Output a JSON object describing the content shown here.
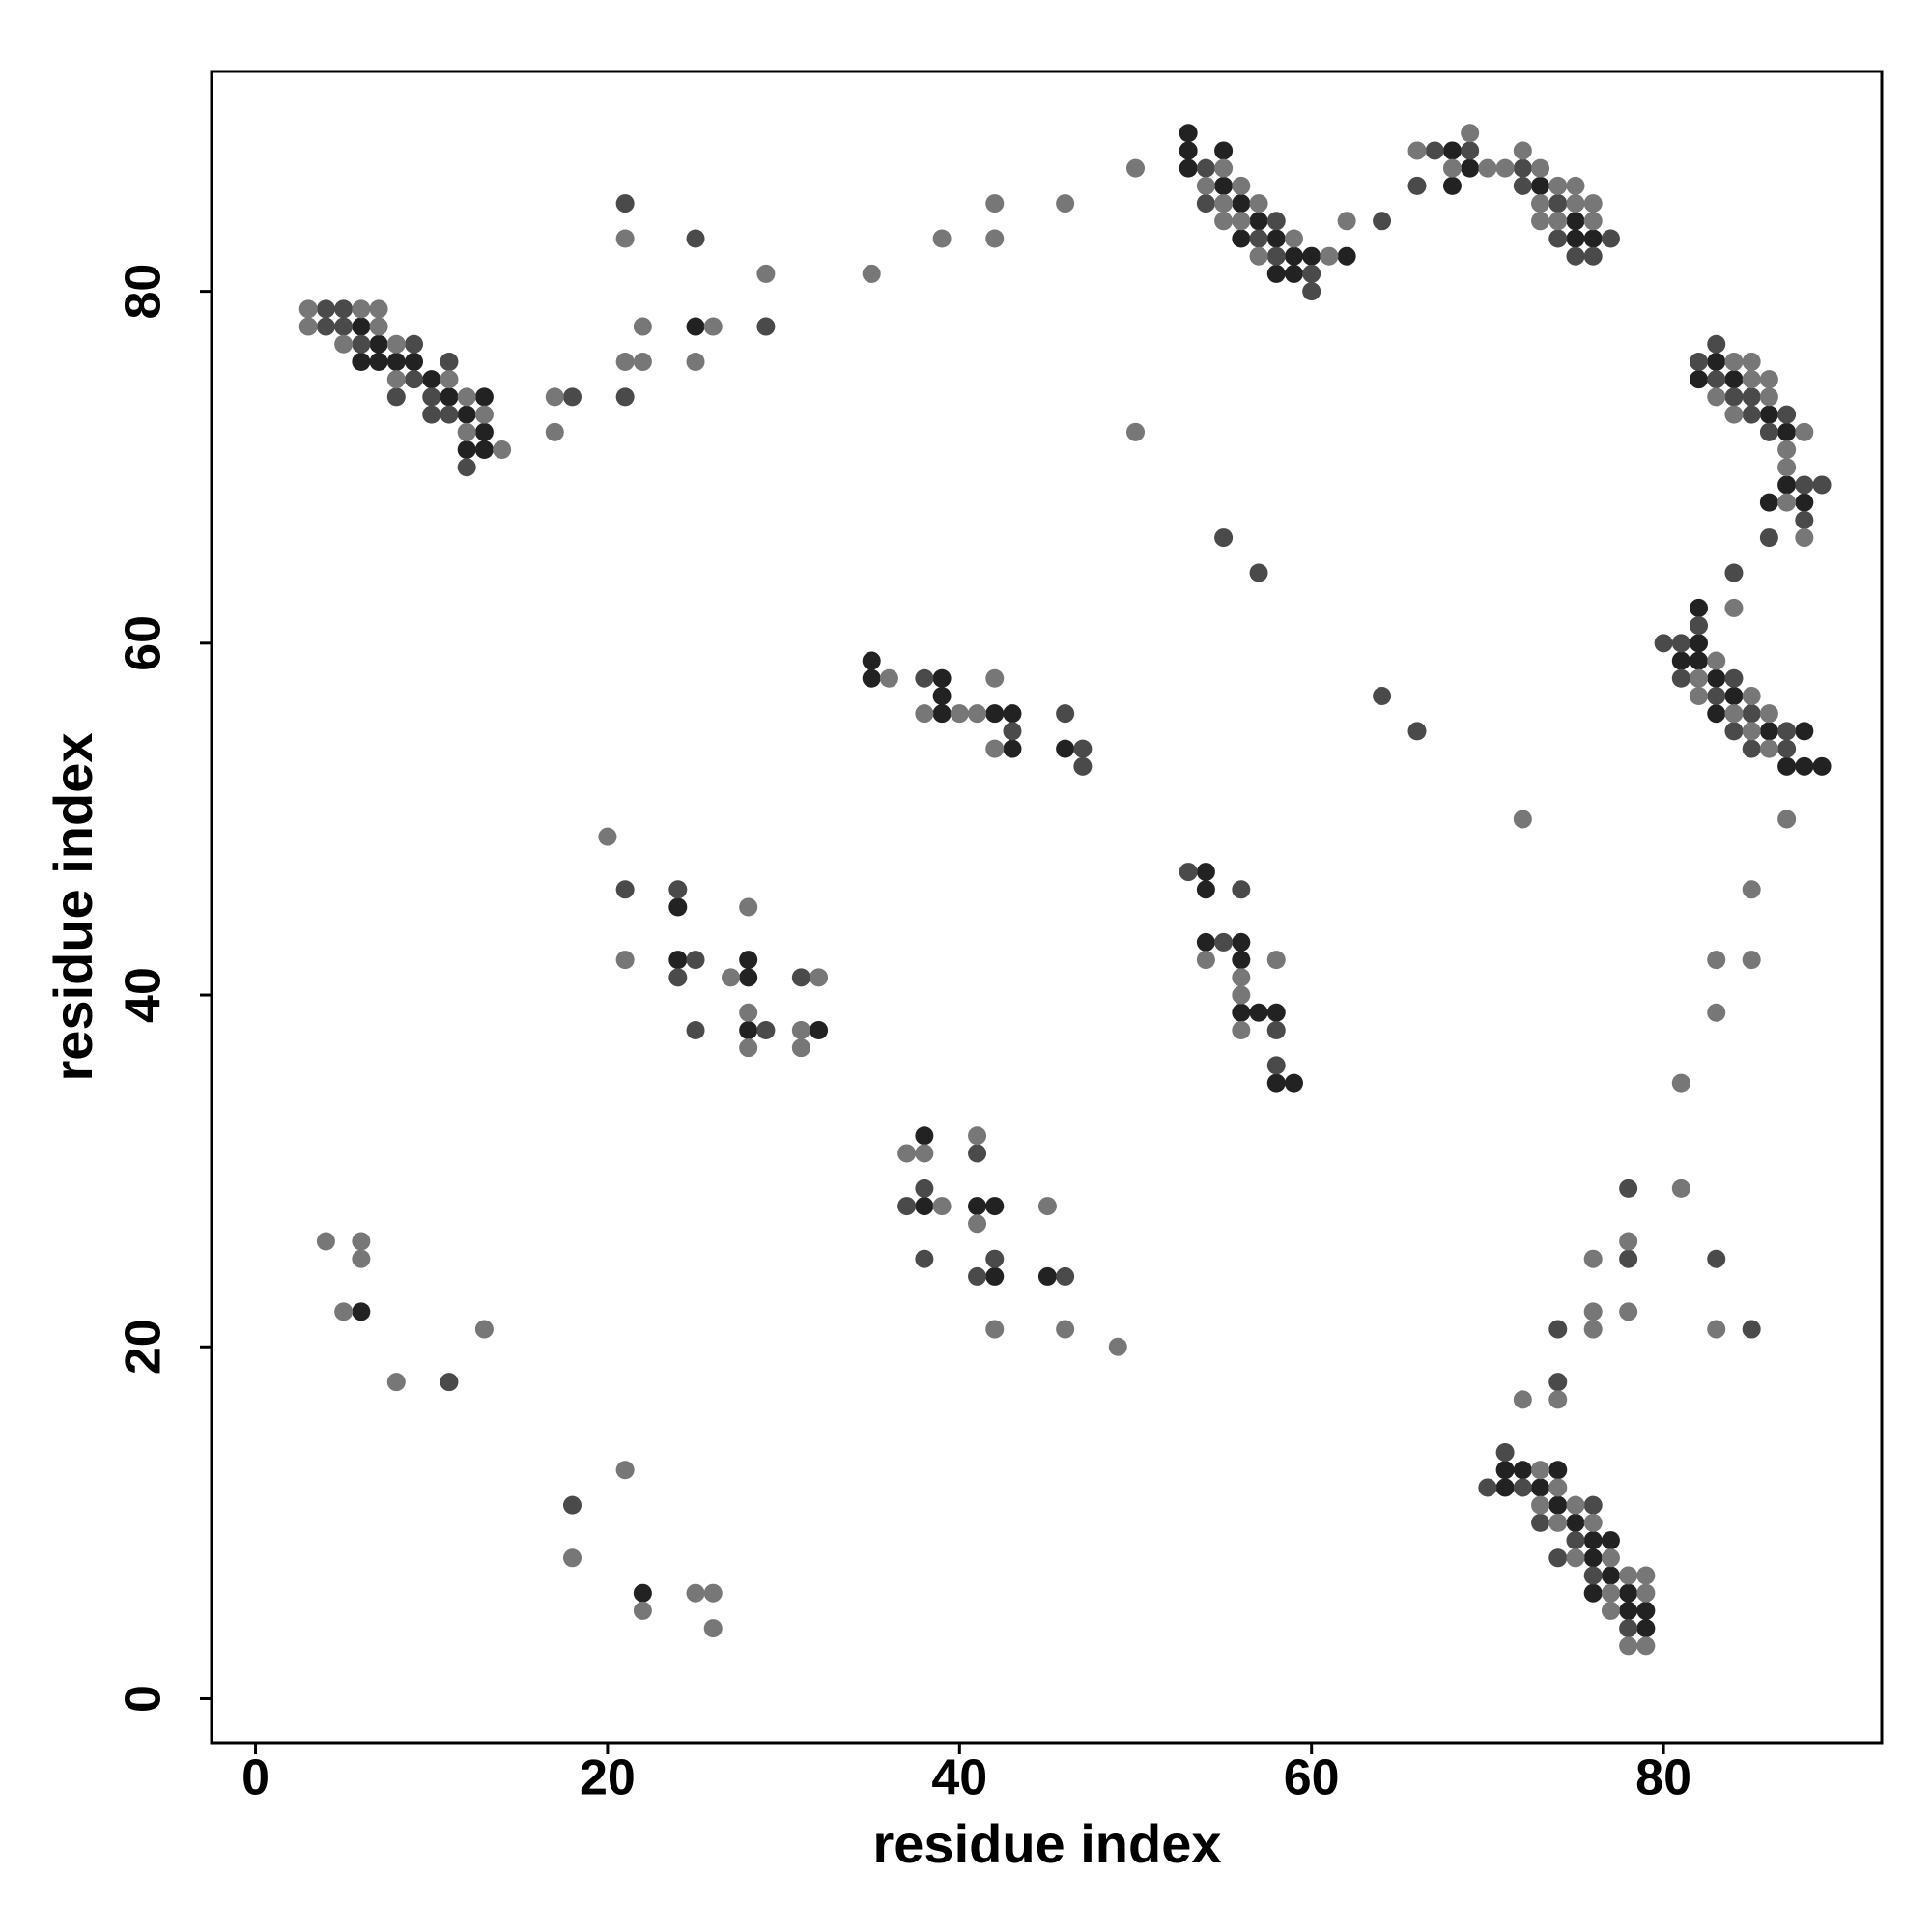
{
  "chart_data": {
    "type": "scatter",
    "x_label": "residue index",
    "y_label": "residue index",
    "xlim": [
      -2.5,
      92.4
    ],
    "ylim": [
      -2.5,
      92.5
    ],
    "xticks": [
      0,
      20,
      40,
      60,
      80
    ],
    "yticks": [
      0,
      20,
      40,
      60,
      80
    ],
    "series": [
      {
        "color": "#222222",
        "x": [
          6,
          7,
          6,
          7,
          8,
          9,
          10,
          11,
          13,
          12,
          13,
          12,
          13,
          25,
          53,
          53,
          55,
          53,
          55,
          56,
          57,
          56,
          58,
          59,
          60,
          62,
          58,
          59,
          68,
          69,
          68,
          73,
          75,
          75,
          76,
          83,
          82,
          84,
          86,
          87,
          87,
          86,
          88,
          82,
          82,
          81,
          82,
          83,
          84,
          83,
          86,
          88,
          87,
          88,
          89,
          35,
          35,
          39,
          39,
          39,
          42,
          43,
          43,
          46,
          24,
          24,
          28,
          28,
          28,
          32,
          54,
          54,
          54,
          56,
          56,
          56,
          57,
          58,
          58,
          59,
          38,
          38,
          41,
          42,
          42,
          45,
          6,
          22,
          71,
          72,
          74,
          71,
          73,
          74,
          75,
          76,
          77,
          76,
          77,
          76,
          78,
          78,
          79,
          79
        ],
        "y": [
          78,
          77,
          76,
          76,
          76,
          76,
          75,
          74,
          74,
          73,
          72,
          71,
          71,
          78,
          89,
          88,
          88,
          87,
          86,
          85,
          84,
          83,
          83,
          82,
          82,
          82,
          81,
          81,
          88,
          87,
          86,
          86,
          84,
          83,
          83,
          76,
          75,
          75,
          73,
          72,
          69,
          68,
          68,
          62,
          60,
          59,
          59,
          58,
          57,
          56,
          55,
          55,
          53,
          53,
          53,
          59,
          58,
          58,
          57,
          56,
          56,
          56,
          54,
          54,
          45,
          42,
          42,
          41,
          38,
          38,
          47,
          46,
          43,
          43,
          42,
          39,
          39,
          39,
          35,
          35,
          32,
          28,
          28,
          28,
          24,
          24,
          22,
          6,
          13,
          13,
          13,
          12,
          12,
          11,
          10,
          9,
          9,
          8,
          7,
          6,
          6,
          5,
          5,
          4
        ]
      },
      {
        "color": "#4a4a4a",
        "x": [
          4,
          5,
          4,
          5,
          6,
          9,
          11,
          9,
          8,
          10,
          10,
          11,
          12,
          18,
          21,
          25,
          21,
          29,
          54,
          54,
          58,
          57,
          58,
          60,
          60,
          64,
          67,
          69,
          72,
          66,
          72,
          74,
          74,
          77,
          75,
          76,
          83,
          82,
          83,
          84,
          85,
          85,
          87,
          86,
          88,
          89,
          88,
          86,
          84,
          82,
          80,
          81,
          81,
          84,
          83,
          85,
          84,
          87,
          85,
          87,
          64,
          66,
          83,
          85,
          38,
          43,
          46,
          47,
          47,
          55,
          57,
          21,
          24,
          25,
          24,
          25,
          29,
          31,
          53,
          56,
          55,
          58,
          58,
          41,
          37,
          38,
          38,
          42,
          41,
          46,
          11,
          18,
          78,
          78,
          74,
          74,
          71,
          70,
          72,
          76,
          73,
          75,
          74,
          76,
          78
        ],
        "y": [
          79,
          79,
          78,
          78,
          77,
          77,
          76,
          75,
          74,
          74,
          73,
          73,
          70,
          74,
          85,
          83,
          74,
          78,
          87,
          85,
          84,
          83,
          82,
          81,
          80,
          84,
          88,
          88,
          87,
          86,
          86,
          85,
          83,
          83,
          82,
          82,
          77,
          76,
          75,
          74,
          74,
          73,
          73,
          72,
          69,
          69,
          67,
          66,
          64,
          61,
          60,
          60,
          58,
          58,
          57,
          56,
          55,
          55,
          54,
          54,
          57,
          55,
          25,
          21,
          58,
          55,
          56,
          54,
          53,
          66,
          64,
          46,
          46,
          42,
          41,
          38,
          38,
          41,
          47,
          46,
          43,
          38,
          36,
          31,
          28,
          29,
          25,
          25,
          24,
          24,
          18,
          11,
          29,
          25,
          21,
          18,
          14,
          12,
          12,
          11,
          10,
          9,
          8,
          7,
          4
        ]
      },
      {
        "color": "#777777",
        "x": [
          3,
          6,
          7,
          3,
          7,
          5,
          8,
          8,
          11,
          12,
          13,
          12,
          14,
          17,
          17,
          21,
          22,
          26,
          21,
          22,
          25,
          29,
          35,
          39,
          42,
          42,
          46,
          50,
          50,
          55,
          54,
          56,
          55,
          57,
          55,
          56,
          59,
          57,
          61,
          62,
          66,
          69,
          68,
          70,
          71,
          73,
          72,
          74,
          75,
          73,
          75,
          76,
          73,
          74,
          76,
          84,
          85,
          85,
          86,
          83,
          86,
          84,
          88,
          87,
          87,
          87,
          88,
          84,
          83,
          82,
          82,
          85,
          84,
          86,
          85,
          86,
          72,
          87,
          85,
          83,
          85,
          83,
          81,
          81,
          83,
          36,
          38,
          40,
          41,
          42,
          42,
          20,
          21,
          27,
          28,
          28,
          28,
          32,
          31,
          31,
          54,
          58,
          56,
          56,
          56,
          37,
          38,
          41,
          39,
          41,
          45,
          42,
          46,
          49,
          4,
          6,
          6,
          5,
          13,
          8,
          21,
          18,
          22,
          25,
          26,
          26,
          76,
          78,
          76,
          78,
          76,
          72,
          74,
          73,
          74,
          73,
          75,
          74,
          76,
          75,
          77,
          78,
          79,
          77,
          79,
          77,
          78,
          79
        ],
        "y": [
          79,
          79,
          79,
          78,
          78,
          77,
          77,
          75,
          75,
          74,
          73,
          72,
          71,
          74,
          72,
          83,
          78,
          78,
          76,
          76,
          76,
          81,
          81,
          83,
          85,
          83,
          85,
          87,
          72,
          87,
          86,
          86,
          85,
          85,
          84,
          84,
          83,
          82,
          82,
          84,
          88,
          89,
          87,
          87,
          87,
          87,
          88,
          86,
          86,
          85,
          85,
          85,
          84,
          84,
          84,
          76,
          76,
          75,
          75,
          74,
          74,
          73,
          72,
          71,
          70,
          68,
          66,
          62,
          59,
          58,
          57,
          57,
          56,
          56,
          55,
          54,
          50,
          50,
          46,
          42,
          42,
          39,
          35,
          29,
          21,
          58,
          56,
          56,
          56,
          58,
          54,
          49,
          42,
          41,
          45,
          39,
          37,
          41,
          38,
          37,
          42,
          42,
          41,
          40,
          38,
          31,
          31,
          32,
          28,
          27,
          28,
          21,
          21,
          20,
          26,
          26,
          25,
          22,
          21,
          18,
          13,
          8,
          5,
          6,
          6,
          4,
          25,
          26,
          22,
          22,
          21,
          17,
          17,
          13,
          12,
          11,
          11,
          10,
          10,
          8,
          8,
          7,
          7,
          6,
          6,
          5,
          3,
          3
        ]
      }
    ]
  }
}
